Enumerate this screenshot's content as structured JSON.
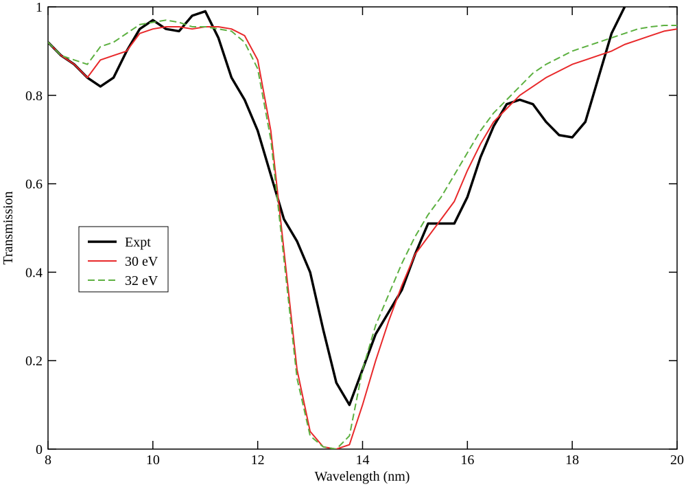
{
  "chart_data": {
    "type": "line",
    "xlabel": "Wavelength (nm)",
    "ylabel": "Transmission",
    "x": [
      8,
      8.25,
      8.5,
      8.75,
      9,
      9.25,
      9.5,
      9.75,
      10,
      10.25,
      10.5,
      10.75,
      11,
      11.25,
      11.5,
      11.75,
      12,
      12.25,
      12.5,
      12.75,
      13,
      13.25,
      13.5,
      13.75,
      14,
      14.25,
      14.5,
      14.75,
      15,
      15.25,
      15.5,
      15.75,
      16,
      16.25,
      16.5,
      16.75,
      17,
      17.25,
      17.5,
      17.75,
      18,
      18.25,
      18.5,
      18.75,
      19,
      19.25,
      19.5,
      19.75,
      20
    ],
    "series": [
      {
        "name": "Expt",
        "color": "#000000",
        "dash": false,
        "width": 3.5,
        "values": [
          0.92,
          0.89,
          0.87,
          0.84,
          0.82,
          0.84,
          0.9,
          0.95,
          0.97,
          0.95,
          0.945,
          0.98,
          0.99,
          0.93,
          0.84,
          0.79,
          0.72,
          0.62,
          0.52,
          0.47,
          0.4,
          0.27,
          0.15,
          0.1,
          0.18,
          0.26,
          0.31,
          0.36,
          0.44,
          0.51,
          0.51,
          0.51,
          0.57,
          0.66,
          0.73,
          0.78,
          0.79,
          0.78,
          0.74,
          0.71,
          0.705,
          0.74,
          0.84,
          0.94,
          1.0,
          null,
          null,
          null,
          null
        ]
      },
      {
        "name": "30 eV",
        "color": "#e8282a",
        "dash": false,
        "width": 2,
        "values": [
          0.92,
          0.89,
          0.87,
          0.84,
          0.88,
          0.89,
          0.9,
          0.94,
          0.95,
          0.955,
          0.955,
          0.95,
          0.955,
          0.955,
          0.95,
          0.935,
          0.88,
          0.72,
          0.45,
          0.18,
          0.04,
          0.005,
          0,
          0.01,
          0.1,
          0.2,
          0.29,
          0.37,
          0.44,
          0.48,
          0.52,
          0.56,
          0.63,
          0.69,
          0.74,
          0.77,
          0.8,
          0.82,
          0.84,
          0.855,
          0.87,
          0.88,
          0.89,
          0.9,
          0.915,
          0.925,
          0.935,
          0.945,
          0.95
        ]
      },
      {
        "name": "32 eV",
        "color": "#5cb040",
        "dash": true,
        "width": 2,
        "values": [
          0.92,
          0.89,
          0.88,
          0.87,
          0.91,
          0.92,
          0.94,
          0.96,
          0.965,
          0.97,
          0.965,
          0.955,
          0.955,
          0.95,
          0.945,
          0.92,
          0.86,
          0.7,
          0.43,
          0.16,
          0.03,
          0.005,
          0,
          0.03,
          0.18,
          0.28,
          0.35,
          0.42,
          0.48,
          0.53,
          0.57,
          0.62,
          0.67,
          0.72,
          0.76,
          0.79,
          0.82,
          0.85,
          0.87,
          0.885,
          0.9,
          0.91,
          0.92,
          0.93,
          0.94,
          0.95,
          0.955,
          0.958,
          0.958
        ]
      }
    ],
    "xlim": [
      8,
      20
    ],
    "xticks": [
      8,
      10,
      12,
      14,
      16,
      18,
      20
    ],
    "ylim": [
      0,
      1
    ],
    "yticks": [
      0,
      0.2,
      0.4,
      0.6,
      0.8,
      1
    ]
  }
}
